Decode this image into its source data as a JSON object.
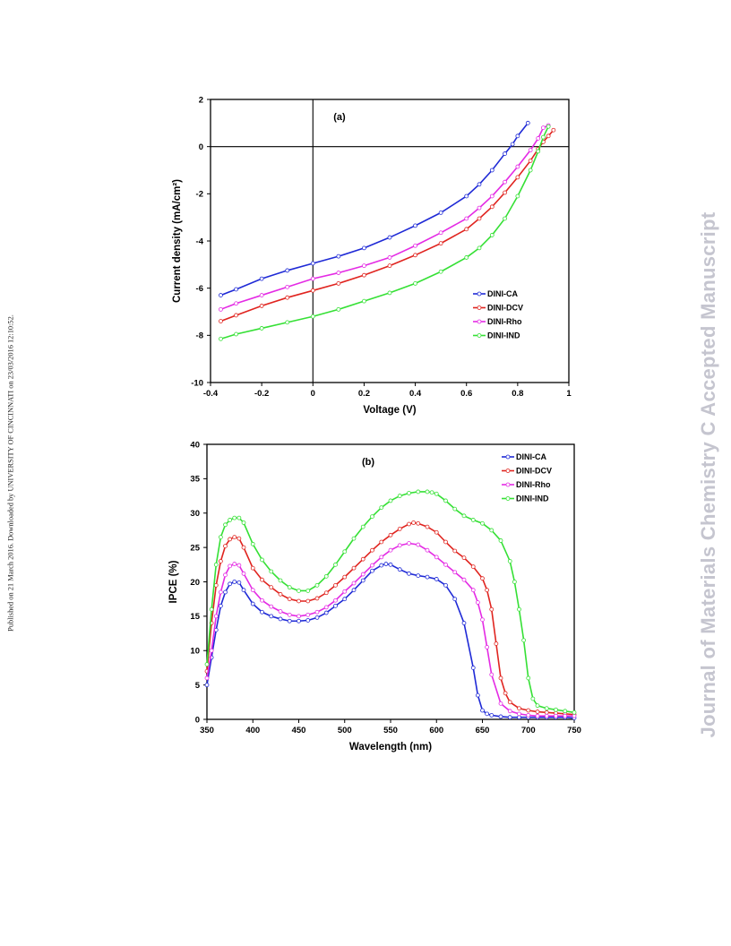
{
  "margin": {
    "left_text": "Published on 21 March 2016. Downloaded by UNIVERSITY OF CINCINNATI on 23/03/2016 12:10:52.",
    "right_text": "Journal of Materials Chemistry C Accepted Manuscript"
  },
  "colors": {
    "DINI-CA": "#1f2ad6",
    "DINI-DCV": "#e0241f",
    "DINI-Rho": "#e42be4",
    "DINI-IND": "#35e035"
  },
  "chart_data": [
    {
      "type": "line",
      "title": "(a)",
      "xlabel": "Voltage (V)",
      "ylabel": "Current density (mA/cm²)",
      "xlim": [
        -0.4,
        1
      ],
      "ylim": [
        -10,
        2
      ],
      "xticks": [
        "-0.4",
        "-0.2",
        "0",
        "0.2",
        "0.4",
        "0.6",
        "0.8",
        "1"
      ],
      "yticks": [
        "2",
        "0",
        "-2",
        "-4",
        "-6",
        "-8",
        "-10"
      ],
      "grid": false,
      "legend_position": "bottom-right",
      "series": [
        {
          "name": "DINI-CA",
          "x": [
            -0.36,
            -0.3,
            -0.2,
            -0.1,
            0,
            0.1,
            0.2,
            0.3,
            0.4,
            0.5,
            0.6,
            0.65,
            0.7,
            0.75,
            0.78,
            0.8,
            0.84
          ],
          "y": [
            -6.3,
            -6.05,
            -5.6,
            -5.25,
            -4.95,
            -4.65,
            -4.3,
            -3.85,
            -3.35,
            -2.8,
            -2.1,
            -1.6,
            -1.0,
            -0.3,
            0.1,
            0.45,
            1.0
          ]
        },
        {
          "name": "DINI-DCV",
          "x": [
            -0.36,
            -0.3,
            -0.2,
            -0.1,
            0,
            0.1,
            0.2,
            0.3,
            0.4,
            0.5,
            0.6,
            0.65,
            0.7,
            0.75,
            0.8,
            0.85,
            0.88,
            0.9,
            0.92,
            0.94
          ],
          "y": [
            -7.4,
            -7.15,
            -6.75,
            -6.4,
            -6.1,
            -5.8,
            -5.45,
            -5.05,
            -4.6,
            -4.1,
            -3.5,
            -3.05,
            -2.55,
            -1.95,
            -1.3,
            -0.6,
            -0.1,
            0.2,
            0.45,
            0.7
          ]
        },
        {
          "name": "DINI-Rho",
          "x": [
            -0.36,
            -0.3,
            -0.2,
            -0.1,
            0,
            0.1,
            0.2,
            0.3,
            0.4,
            0.5,
            0.6,
            0.65,
            0.7,
            0.75,
            0.8,
            0.85,
            0.88,
            0.9,
            0.92
          ],
          "y": [
            -6.9,
            -6.65,
            -6.3,
            -5.95,
            -5.6,
            -5.35,
            -5.05,
            -4.7,
            -4.2,
            -3.65,
            -3.05,
            -2.6,
            -2.1,
            -1.5,
            -0.85,
            -0.15,
            0.35,
            0.8,
            0.9
          ]
        },
        {
          "name": "DINI-IND",
          "x": [
            -0.36,
            -0.3,
            -0.2,
            -0.1,
            0,
            0.1,
            0.2,
            0.3,
            0.4,
            0.5,
            0.6,
            0.65,
            0.7,
            0.75,
            0.8,
            0.85,
            0.88,
            0.9,
            0.92
          ],
          "y": [
            -8.15,
            -7.95,
            -7.7,
            -7.45,
            -7.2,
            -6.9,
            -6.55,
            -6.2,
            -5.8,
            -5.3,
            -4.7,
            -4.3,
            -3.75,
            -3.05,
            -2.1,
            -1.0,
            -0.2,
            0.4,
            0.85
          ]
        }
      ]
    },
    {
      "type": "line",
      "title": "(b)",
      "xlabel": "Wavelength (nm)",
      "ylabel": "IPCE (%)",
      "xlim": [
        350,
        750
      ],
      "ylim": [
        0,
        40
      ],
      "xticks": [
        "350",
        "400",
        "450",
        "500",
        "550",
        "600",
        "650",
        "700",
        "750"
      ],
      "yticks": [
        "40",
        "35",
        "30",
        "25",
        "20",
        "15",
        "10",
        "5",
        "0"
      ],
      "grid": false,
      "legend_position": "top-right",
      "series": [
        {
          "name": "DINI-CA",
          "x": [
            350,
            355,
            360,
            365,
            370,
            375,
            380,
            385,
            390,
            400,
            410,
            420,
            430,
            440,
            450,
            460,
            470,
            480,
            490,
            500,
            510,
            520,
            530,
            540,
            545,
            550,
            560,
            570,
            580,
            590,
            600,
            610,
            620,
            630,
            640,
            645,
            650,
            655,
            660,
            670,
            680,
            690,
            700,
            710,
            720,
            730,
            740,
            750
          ],
          "y": [
            5,
            9,
            13,
            16.5,
            18.5,
            19.7,
            20.0,
            19.9,
            18.8,
            16.8,
            15.6,
            15.0,
            14.6,
            14.3,
            14.3,
            14.4,
            14.8,
            15.5,
            16.5,
            17.5,
            18.8,
            20.2,
            21.6,
            22.4,
            22.6,
            22.5,
            21.8,
            21.2,
            20.9,
            20.7,
            20.4,
            19.5,
            17.5,
            14.0,
            7.5,
            3.5,
            1.3,
            0.8,
            0.6,
            0.4,
            0.3,
            0.3,
            0.3,
            0.3,
            0.3,
            0.3,
            0.3,
            0.2
          ]
        },
        {
          "name": "DINI-DCV",
          "x": [
            350,
            355,
            360,
            365,
            370,
            375,
            380,
            385,
            390,
            400,
            410,
            420,
            430,
            440,
            450,
            460,
            470,
            480,
            490,
            500,
            510,
            520,
            530,
            540,
            550,
            560,
            570,
            575,
            580,
            590,
            600,
            610,
            620,
            630,
            640,
            650,
            655,
            660,
            665,
            670,
            675,
            680,
            690,
            700,
            710,
            720,
            730,
            740,
            750
          ],
          "y": [
            7,
            14,
            19.5,
            23,
            25.2,
            26.2,
            26.5,
            26.3,
            25.0,
            22.0,
            20.3,
            19.2,
            18.2,
            17.5,
            17.2,
            17.2,
            17.6,
            18.4,
            19.5,
            20.7,
            22.0,
            23.3,
            24.6,
            25.8,
            26.8,
            27.7,
            28.4,
            28.6,
            28.5,
            28.0,
            27.2,
            25.8,
            24.5,
            23.5,
            22.2,
            20.5,
            18.8,
            16.0,
            11.0,
            6.0,
            3.8,
            2.5,
            1.6,
            1.3,
            1.1,
            1.0,
            0.9,
            0.8,
            0.7
          ]
        },
        {
          "name": "DINI-Rho",
          "x": [
            350,
            355,
            360,
            365,
            370,
            375,
            380,
            385,
            390,
            400,
            410,
            420,
            430,
            440,
            450,
            460,
            470,
            480,
            490,
            500,
            510,
            520,
            530,
            540,
            550,
            560,
            570,
            580,
            590,
            600,
            610,
            620,
            630,
            640,
            645,
            650,
            655,
            660,
            670,
            680,
            690,
            700,
            710,
            720,
            730,
            740,
            750
          ],
          "y": [
            6,
            10,
            15,
            18.5,
            21,
            22.3,
            22.6,
            22.4,
            21.2,
            18.8,
            17.3,
            16.4,
            15.7,
            15.2,
            15.0,
            15.2,
            15.6,
            16.3,
            17.3,
            18.6,
            19.8,
            21.1,
            22.4,
            23.6,
            24.6,
            25.3,
            25.6,
            25.4,
            24.6,
            23.6,
            22.5,
            21.4,
            20.3,
            18.8,
            17.0,
            14.5,
            10.5,
            6.5,
            2.3,
            1.2,
            0.8,
            0.6,
            0.5,
            0.5,
            0.5,
            0.5,
            0.5
          ]
        },
        {
          "name": "DINI-IND",
          "x": [
            350,
            355,
            360,
            365,
            370,
            375,
            380,
            385,
            390,
            400,
            410,
            420,
            430,
            440,
            450,
            460,
            470,
            480,
            490,
            500,
            510,
            520,
            530,
            540,
            550,
            560,
            570,
            580,
            590,
            595,
            600,
            610,
            620,
            630,
            640,
            650,
            660,
            670,
            680,
            685,
            690,
            695,
            700,
            705,
            710,
            720,
            730,
            740,
            750
          ],
          "y": [
            8,
            16,
            22.5,
            26.5,
            28.3,
            29.0,
            29.3,
            29.3,
            28.6,
            25.5,
            23.2,
            21.5,
            20.2,
            19.2,
            18.7,
            18.7,
            19.5,
            20.8,
            22.5,
            24.4,
            26.3,
            28.0,
            29.5,
            30.8,
            31.8,
            32.5,
            32.9,
            33.1,
            33.1,
            33.0,
            32.8,
            31.8,
            30.6,
            29.6,
            29.0,
            28.5,
            27.5,
            26.0,
            23.0,
            20.0,
            16.0,
            11.5,
            6.0,
            3.0,
            2.0,
            1.6,
            1.4,
            1.2,
            1.0
          ]
        }
      ]
    }
  ]
}
